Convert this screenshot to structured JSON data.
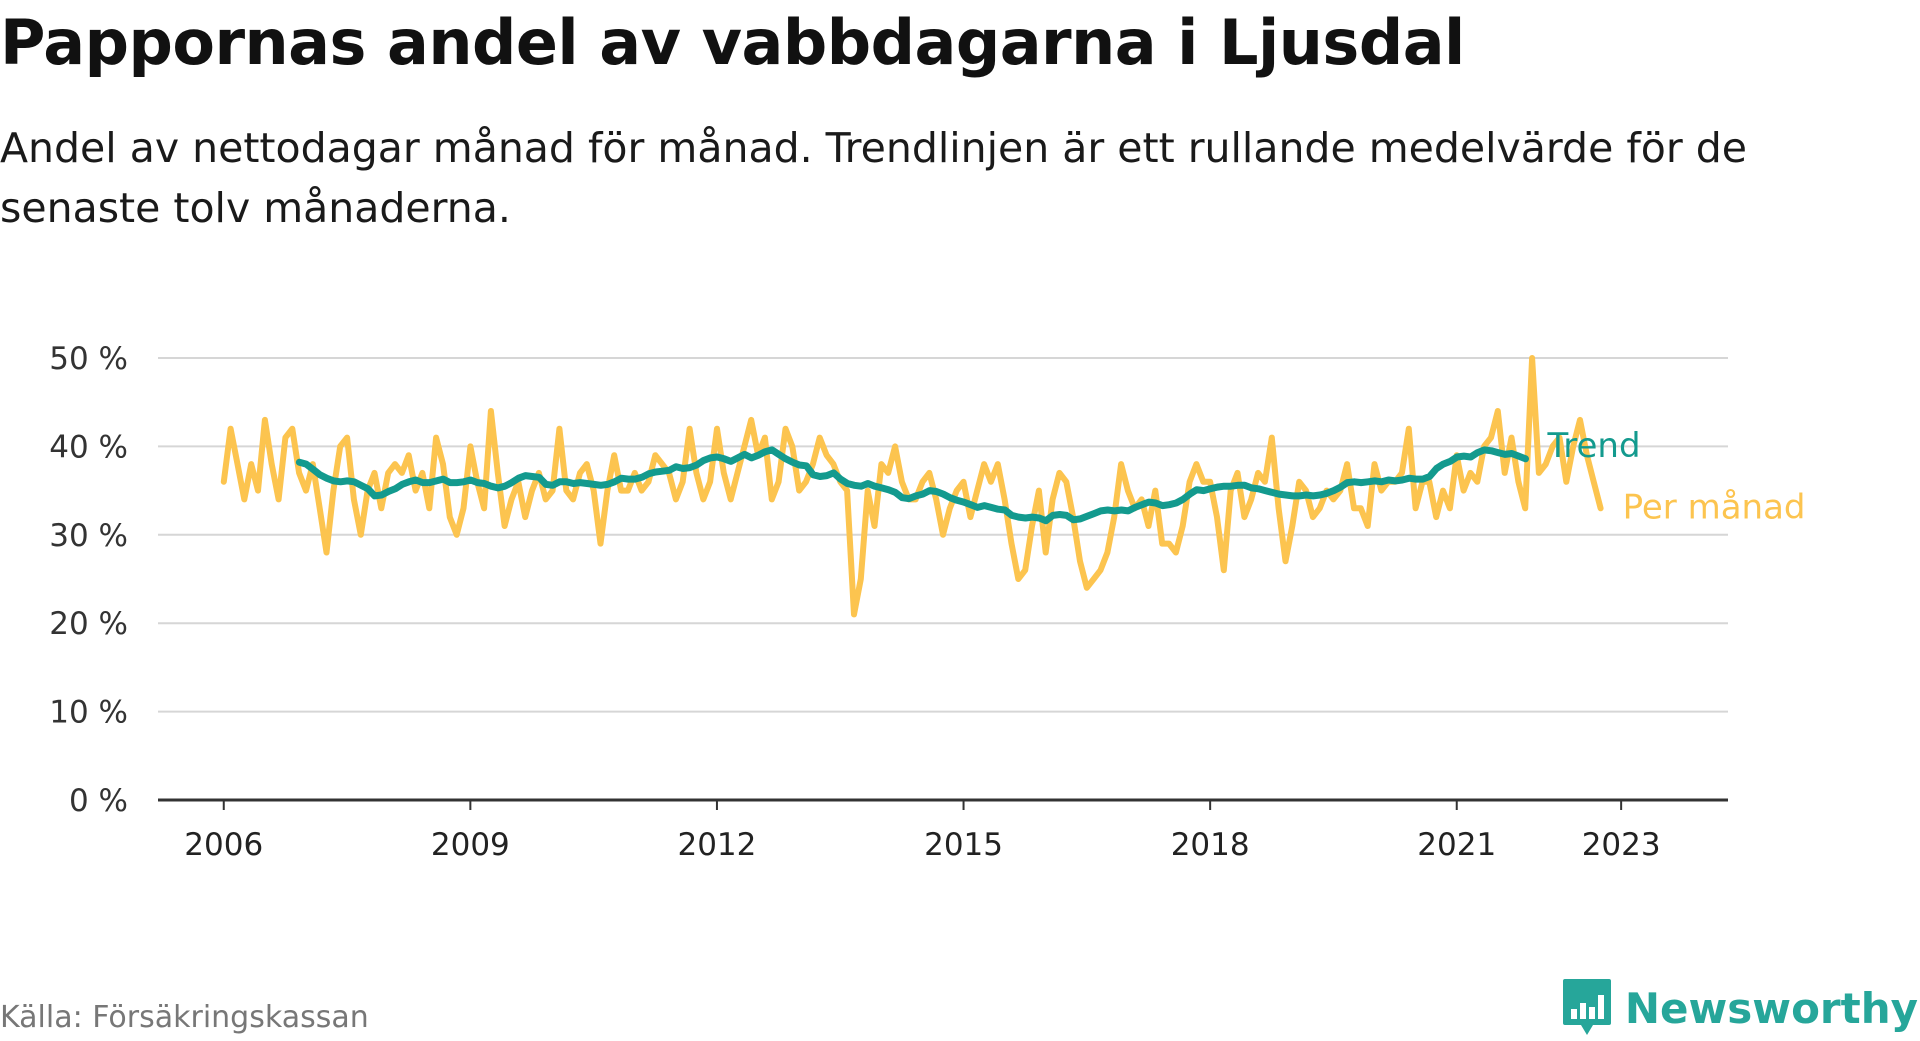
{
  "title": "Pappornas andel av vabbdagarna i Ljusdal",
  "subtitle": "Andel av nettodagar månad för månad. Trendlinjen är ett rullande medelvärde för de senaste tolv månaderna.",
  "source": "Källa: Försäkringskassan",
  "brand": {
    "name": "Newsworthy",
    "logo_icon": "bar-chart-speech-bubble-icon",
    "color": "#26a69a"
  },
  "colors": {
    "trend": "#139a8e",
    "monthly": "#fcc44f",
    "grid": "#d6d6d6"
  },
  "chart_data": {
    "type": "line",
    "title": "",
    "xlabel": "",
    "ylabel": "",
    "ylim": [
      0,
      50
    ],
    "xlim": [
      2005.2,
      2024.3
    ],
    "yticks": [
      0,
      10,
      20,
      30,
      40,
      50
    ],
    "ytick_labels": [
      "0 %",
      "10 %",
      "20 %",
      "30 %",
      "40 %",
      "50 %"
    ],
    "xticks": [
      2006,
      2009,
      2012,
      2015,
      2018,
      2021,
      2023
    ],
    "xtick_labels": [
      "2006",
      "2009",
      "2012",
      "2015",
      "2018",
      "2021",
      "2023"
    ],
    "grid": true,
    "legend": "inline labels at line ends, right",
    "series": [
      {
        "name": "Per månad",
        "color": "#fcc44f",
        "x_start": 2006.0,
        "x_step_months": 1,
        "values": [
          36,
          42,
          38,
          34,
          38,
          35,
          43,
          38,
          34,
          41,
          42,
          37,
          35,
          38,
          33,
          28,
          35,
          40,
          41,
          34,
          30,
          35,
          37,
          33,
          37,
          38,
          37,
          39,
          35,
          37,
          33,
          41,
          38,
          32,
          30,
          33,
          40,
          36,
          33,
          44,
          37,
          31,
          34,
          36,
          32,
          35,
          37,
          34,
          35,
          42,
          35,
          34,
          37,
          38,
          35,
          29,
          35,
          39,
          35,
          35,
          37,
          35,
          36,
          39,
          38,
          37,
          34,
          36,
          42,
          37,
          34,
          36,
          42,
          37,
          34,
          37,
          40,
          43,
          39,
          41,
          34,
          36,
          42,
          40,
          35,
          36,
          38,
          41,
          39,
          38,
          36,
          35,
          21,
          25,
          35,
          31,
          38,
          37,
          40,
          36,
          34,
          34,
          36,
          37,
          34,
          30,
          33,
          35,
          36,
          32,
          35,
          38,
          36,
          38,
          34,
          29,
          25,
          26,
          31,
          35,
          28,
          34,
          37,
          36,
          32,
          27,
          24,
          25,
          26,
          28,
          32,
          38,
          35,
          33,
          34,
          31,
          35,
          29,
          29,
          28,
          31,
          36,
          38,
          36,
          36,
          32,
          26,
          35,
          37,
          32,
          34,
          37,
          36,
          41,
          33,
          27,
          31,
          36,
          35,
          32,
          33,
          35,
          34,
          35,
          38,
          33,
          33,
          31,
          38,
          35,
          36,
          36,
          37,
          42,
          33,
          36,
          36,
          32,
          35,
          33,
          39,
          35,
          37,
          36,
          40,
          41,
          44,
          37,
          41,
          36,
          33,
          50,
          37,
          38,
          40,
          41,
          36,
          40,
          43,
          39,
          36,
          33
        ]
      },
      {
        "name": "Trend",
        "color": "#139a8e",
        "x_start": 2006.92,
        "x_step_months": 1,
        "values": [
          38.2,
          38.0,
          37.4,
          36.8,
          36.4,
          36.1,
          36.0,
          36.1,
          36.0,
          35.6,
          35.2,
          34.4,
          34.5,
          34.9,
          35.2,
          35.7,
          36.0,
          36.2,
          35.9,
          35.9,
          36.1,
          36.3,
          35.9,
          35.9,
          36.0,
          36.2,
          35.9,
          35.8,
          35.5,
          35.3,
          35.5,
          35.9,
          36.4,
          36.7,
          36.6,
          36.5,
          35.7,
          35.6,
          36.0,
          36.0,
          35.8,
          35.9,
          35.8,
          35.7,
          35.6,
          35.7,
          36.0,
          36.4,
          36.3,
          36.3,
          36.5,
          36.9,
          37.1,
          37.2,
          37.3,
          37.7,
          37.5,
          37.6,
          37.9,
          38.4,
          38.7,
          38.8,
          38.6,
          38.3,
          38.7,
          39.1,
          38.7,
          39.0,
          39.4,
          39.6,
          39.1,
          38.6,
          38.2,
          37.9,
          37.8,
          36.8,
          36.6,
          36.7,
          37.0,
          36.3,
          35.8,
          35.6,
          35.5,
          35.8,
          35.5,
          35.3,
          35.1,
          34.8,
          34.2,
          34.1,
          34.4,
          34.6,
          35.0,
          34.9,
          34.6,
          34.2,
          33.9,
          33.7,
          33.4,
          33.1,
          33.3,
          33.1,
          32.9,
          32.8,
          32.2,
          32.0,
          31.9,
          32.0,
          31.9,
          31.6,
          32.2,
          32.3,
          32.2,
          31.7,
          31.8,
          32.1,
          32.4,
          32.7,
          32.8,
          32.7,
          32.8,
          32.7,
          33.1,
          33.4,
          33.7,
          33.6,
          33.3,
          33.4,
          33.6,
          34.0,
          34.6,
          35.1,
          35.0,
          35.2,
          35.4,
          35.5,
          35.5,
          35.6,
          35.6,
          35.3,
          35.2,
          35.0,
          34.8,
          34.6,
          34.5,
          34.4,
          34.4,
          34.5,
          34.4,
          34.5,
          34.7,
          35.0,
          35.4,
          35.9,
          36.0,
          35.9,
          36.0,
          36.1,
          36.0,
          36.2,
          36.1,
          36.2,
          36.4,
          36.3,
          36.3,
          36.6,
          37.5,
          38.0,
          38.3,
          38.8,
          38.9,
          38.8,
          39.3,
          39.6,
          39.5,
          39.3,
          39.1,
          39.2,
          38.9,
          38.6
        ]
      }
    ]
  }
}
